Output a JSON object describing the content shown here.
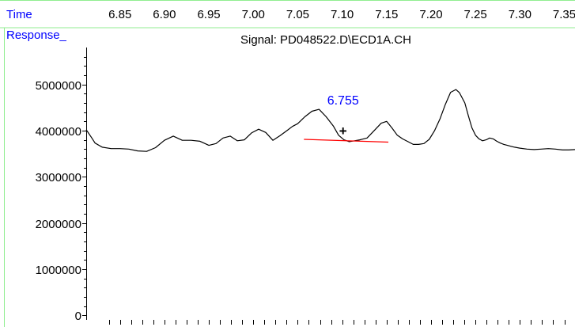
{
  "header": {
    "time_label": "Time",
    "response_label": "Response_",
    "signal_title": "Signal: PD048522.D\\ECD1A.CH"
  },
  "colors": {
    "header_text": "#0000ff",
    "frame_border": "#90ee90",
    "trace": "#000000",
    "baseline": "#ff0000",
    "peak_label": "#0000ff"
  },
  "chart_data": {
    "type": "line",
    "title": "Signal: PD048522.D\\ECD1A.CH",
    "xlabel": "Time",
    "ylabel": "Response_",
    "x_ticks": [
      6.85,
      6.9,
      6.95,
      7.0,
      7.05,
      7.1,
      7.15,
      7.2,
      7.25,
      7.3,
      7.35
    ],
    "x_tick_labels": [
      "6.85",
      "6.90",
      "6.95",
      "7.00",
      "7.05",
      "7.10",
      "7.15",
      "7.20",
      "7.25",
      "7.30",
      "7.35"
    ],
    "xlim": [
      6.812,
      7.362
    ],
    "y_ticks": [
      0,
      1000000,
      2000000,
      3000000,
      4000000,
      5000000
    ],
    "y_tick_labels": [
      "0",
      "1000000",
      "2000000",
      "3000000",
      "4000000",
      "5000000"
    ],
    "ylim": [
      -100000,
      5800000
    ],
    "grid": false,
    "series": [
      {
        "color": "#000000",
        "x": [
          6.812,
          6.818,
          6.822,
          6.83,
          6.84,
          6.85,
          6.86,
          6.87,
          6.88,
          6.89,
          6.9,
          6.91,
          6.92,
          6.93,
          6.94,
          6.95,
          6.958,
          6.966,
          6.974,
          6.982,
          6.99,
          6.998,
          7.006,
          7.014,
          7.022,
          7.03,
          7.038,
          7.044,
          7.05,
          7.058,
          7.066,
          7.074,
          7.082,
          7.09,
          7.096,
          7.102,
          7.108,
          7.114,
          7.12,
          7.128,
          7.136,
          7.144,
          7.15,
          7.156,
          7.162,
          7.168,
          7.174,
          7.18,
          7.186,
          7.192,
          7.198,
          7.204,
          7.21,
          7.216,
          7.222,
          7.228,
          7.232,
          7.238,
          7.242,
          7.246,
          7.25,
          7.254,
          7.258,
          7.262,
          7.266,
          7.27,
          7.274,
          7.278,
          7.282,
          7.286,
          7.29,
          7.294,
          7.3,
          7.308,
          7.316,
          7.324,
          7.332,
          7.34,
          7.348,
          7.355,
          7.362
        ],
        "y": [
          4020000,
          3850000,
          3730000,
          3640000,
          3610000,
          3610000,
          3600000,
          3560000,
          3550000,
          3630000,
          3790000,
          3880000,
          3790000,
          3790000,
          3770000,
          3680000,
          3720000,
          3840000,
          3880000,
          3780000,
          3800000,
          3950000,
          4030000,
          3960000,
          3790000,
          3890000,
          4000000,
          4090000,
          4150000,
          4300000,
          4420000,
          4460000,
          4300000,
          4100000,
          3900000,
          3800000,
          3760000,
          3780000,
          3800000,
          3840000,
          4000000,
          4160000,
          4200000,
          4060000,
          3900000,
          3820000,
          3760000,
          3700000,
          3700000,
          3720000,
          3810000,
          4000000,
          4250000,
          4560000,
          4830000,
          4890000,
          4820000,
          4600000,
          4320000,
          4060000,
          3900000,
          3820000,
          3780000,
          3800000,
          3840000,
          3820000,
          3770000,
          3730000,
          3700000,
          3680000,
          3660000,
          3640000,
          3620000,
          3600000,
          3590000,
          3600000,
          3610000,
          3600000,
          3580000,
          3580000,
          3590000
        ]
      }
    ],
    "baseline": {
      "x": [
        7.057,
        7.152
      ],
      "y": [
        3810000,
        3750000
      ],
      "color": "#ff0000"
    },
    "peak_marker": {
      "x": 7.101,
      "y": 4000000,
      "symbol": "+"
    },
    "annotations": [
      {
        "text": "6.755",
        "x": 7.101,
        "y": 4670000,
        "color": "#0000ff"
      }
    ]
  }
}
